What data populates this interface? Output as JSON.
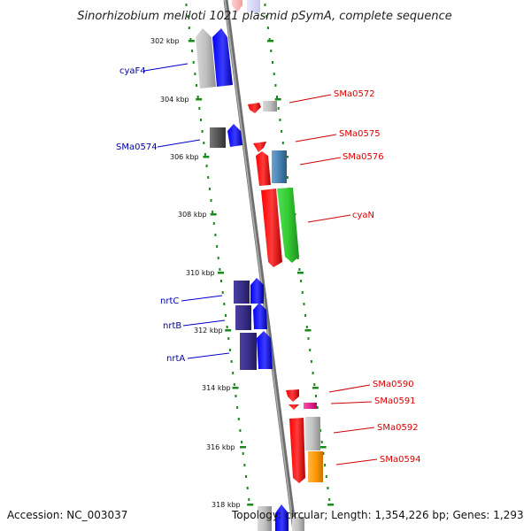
{
  "title": "Sinorhizobium meliloti 1021 plasmid pSymA, complete sequence",
  "footer": {
    "accession": "Accession: NC_003037",
    "summary": "Topology: circular; Length: 1,354,226 bp; Genes: 1,293"
  },
  "ticks": [
    {
      "label": "302 kbp"
    },
    {
      "label": "304 kbp"
    },
    {
      "label": "306 kbp"
    },
    {
      "label": "308 kbp"
    },
    {
      "label": "310 kbp"
    },
    {
      "label": "312 kbp"
    },
    {
      "label": "314 kbp"
    },
    {
      "label": "316 kbp"
    },
    {
      "label": "318 kbp"
    }
  ],
  "genes_left": [
    {
      "name": "cyaF4",
      "color": "#0000aa"
    },
    {
      "name": "SMa0574",
      "color": "#0000aa"
    },
    {
      "name": "nrtC",
      "color": "#0000aa"
    },
    {
      "name": "nrtB",
      "color": "#0000aa"
    },
    {
      "name": "nrtA",
      "color": "#0000aa"
    }
  ],
  "genes_right": [
    {
      "name": "SMa0572",
      "color": "#dd0000"
    },
    {
      "name": "SMa0575",
      "color": "#dd0000"
    },
    {
      "name": "SMa0576",
      "color": "#dd0000"
    },
    {
      "name": "cyaN",
      "color": "#dd0000"
    },
    {
      "name": "SMa0590",
      "color": "#dd0000"
    },
    {
      "name": "SMa0591",
      "color": "#dd0000"
    },
    {
      "name": "SMa0592",
      "color": "#dd0000"
    },
    {
      "name": "SMa0594",
      "color": "#dd0000"
    }
  ],
  "colors": {
    "backbone": "#8c8c8c",
    "guide_dots": "#1a8a1a",
    "forward_strand": "#0000ff",
    "reverse_strand": "#ff0000",
    "hypothetical": "#c0c0c0",
    "green_feature": "#33cc33",
    "orange_feature": "#ff9900",
    "steel_feature": "#4682b4",
    "purple_feature": "#3a2f8a",
    "magenta_feature": "#ff1493"
  }
}
